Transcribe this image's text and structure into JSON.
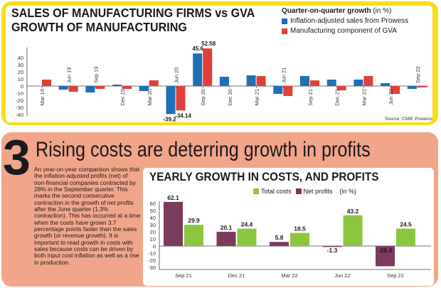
{
  "colors": {
    "yellow_panel": "#f6de1c",
    "salmon_panel": "#f1a68a",
    "blue_series": "#1f6fb5",
    "red_series": "#e0403a",
    "maroon_series": "#7b3b5c",
    "green_series": "#8cc63f"
  },
  "top": {
    "title_line1": "SALES OF MANUFACTURING FIRMS vs GVA",
    "title_line2": "GROWTH OF MANUFACTURING",
    "legend_title": "Quarter-on-quarter growth",
    "legend_unit": "(in %)",
    "source": "Source: CMIE Prowess"
  },
  "section": {
    "number": "3",
    "headline": "Rising costs are deterring growth in profits",
    "body": "An year-on-year comparison shows that the inflation-adjusted profits (net) of non-financial companies contracted by 28% in the September quarter. This marks the second consecutive contraction in the growth of net profits after the June quarter (1.3% contraction). This has occurred at a time when the costs have grown 3.7 percentage points faster than the sales growth (or revenue growth). It is important to read growth in costs with sales because costs can be driven by both input cost inflation as well as a rise in production."
  },
  "bottom": {
    "title": "YEARLY GROWTH IN COSTS, AND PROFITS",
    "legend_unit": "(in %)"
  },
  "chart_data": [
    {
      "type": "bar",
      "title": "SALES OF MANUFACTURING FIRMS vs GVA GROWTH OF MANUFACTURING",
      "categories": [
        "Mar 19",
        "Jun 19",
        "Sep 19",
        "Dec 19",
        "Mar 20",
        "Jun 20",
        "Sep 20",
        "Dec 20",
        "Mar 21",
        "Jun 21",
        "Sep 21",
        "Dec 21",
        "Mar 22",
        "Jun 22",
        "Sep 22"
      ],
      "series": [
        {
          "name": "Inflation-adjusted sales from Prowess",
          "values": [
            0,
            -5,
            -9,
            2,
            -7,
            -39.2,
            45.6,
            13,
            15,
            -11,
            14,
            9,
            9,
            4,
            -4
          ]
        },
        {
          "name": "Manufacturing component of GVA",
          "values": [
            9,
            -8,
            -4,
            -4,
            8,
            -34.14,
            52.58,
            0,
            14,
            -14,
            8,
            -6,
            14,
            -11,
            -2
          ]
        }
      ],
      "data_labels": [
        "-39.2",
        "-34.14",
        "45.6",
        "52.58"
      ],
      "yticks": [
        "40",
        "30",
        "20",
        "10",
        "0",
        "-10",
        "-20",
        "-30",
        "-40"
      ],
      "ylim": [
        -42,
        55
      ],
      "grid": false,
      "legend": "top-right"
    },
    {
      "type": "bar",
      "title": "YEARLY GROWTH IN COSTS, AND PROFITS",
      "categories": [
        "Sep 21",
        "Dec 21",
        "Mar 22",
        "Jun 22",
        "Sep 22"
      ],
      "series": [
        {
          "name": "Net profits",
          "values": [
            62.1,
            20.1,
            5.8,
            -1.3,
            -28.4
          ]
        },
        {
          "name": "Total costs",
          "values": [
            29.9,
            24.4,
            18.5,
            43.2,
            24.5
          ]
        }
      ],
      "yticks": [
        "60",
        "50",
        "40",
        "30",
        "20",
        "10",
        "0",
        "-10",
        "-20",
        "-30"
      ],
      "ylim": [
        -35,
        65
      ],
      "grid": false,
      "legend": "top-right"
    }
  ]
}
